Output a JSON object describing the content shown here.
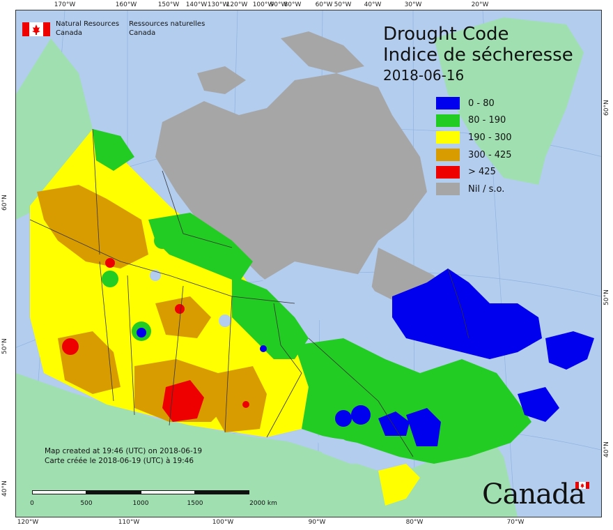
{
  "header": {
    "org_en_line1": "Natural Resources",
    "org_en_line2": "Canada",
    "org_fr_line1": "Ressources naturelles",
    "org_fr_line2": "Canada"
  },
  "title": {
    "en": "Drought Code",
    "fr": "Indice de sécheresse",
    "date": "2018-06-16"
  },
  "legend": {
    "items": [
      {
        "label": "0 - 80",
        "color": "#0000ee"
      },
      {
        "label": "80 - 190",
        "color": "#22cc22"
      },
      {
        "label": "190 - 300",
        "color": "#ffff00"
      },
      {
        "label": "300 - 425",
        "color": "#d99c00"
      },
      {
        "label": "> 425",
        "color": "#ee0000"
      },
      {
        "label": "Nil / s.o.",
        "color": "#a6a6a6"
      }
    ]
  },
  "notes": {
    "en": "Map created at 19:46 (UTC) on 2018-06-19",
    "fr": "Carte créée le 2018-06-19 (UTC) à 19:46"
  },
  "scale": {
    "labels": [
      "0",
      "500",
      "1000",
      "1500",
      "2000 km"
    ]
  },
  "wordmark": "Canada",
  "graticule": {
    "top": [
      "170°W",
      "160°W",
      "150°W",
      "140°W",
      "130°W",
      "120°W",
      "100°W",
      "90°W",
      "80°W",
      "60°W",
      "50°W",
      "40°W",
      "30°W",
      "20°W"
    ],
    "bottom": [
      "120°W",
      "110°W",
      "100°W",
      "90°W",
      "80°W",
      "70°W"
    ],
    "left": [
      "60°N",
      "50°N",
      "40°N"
    ],
    "right": [
      "60°N",
      "50°N",
      "40°N"
    ]
  },
  "colors": {
    "ocean": "#b3cdee",
    "land_outside": "#9fdfb0",
    "nil": "#a6a6a6"
  }
}
